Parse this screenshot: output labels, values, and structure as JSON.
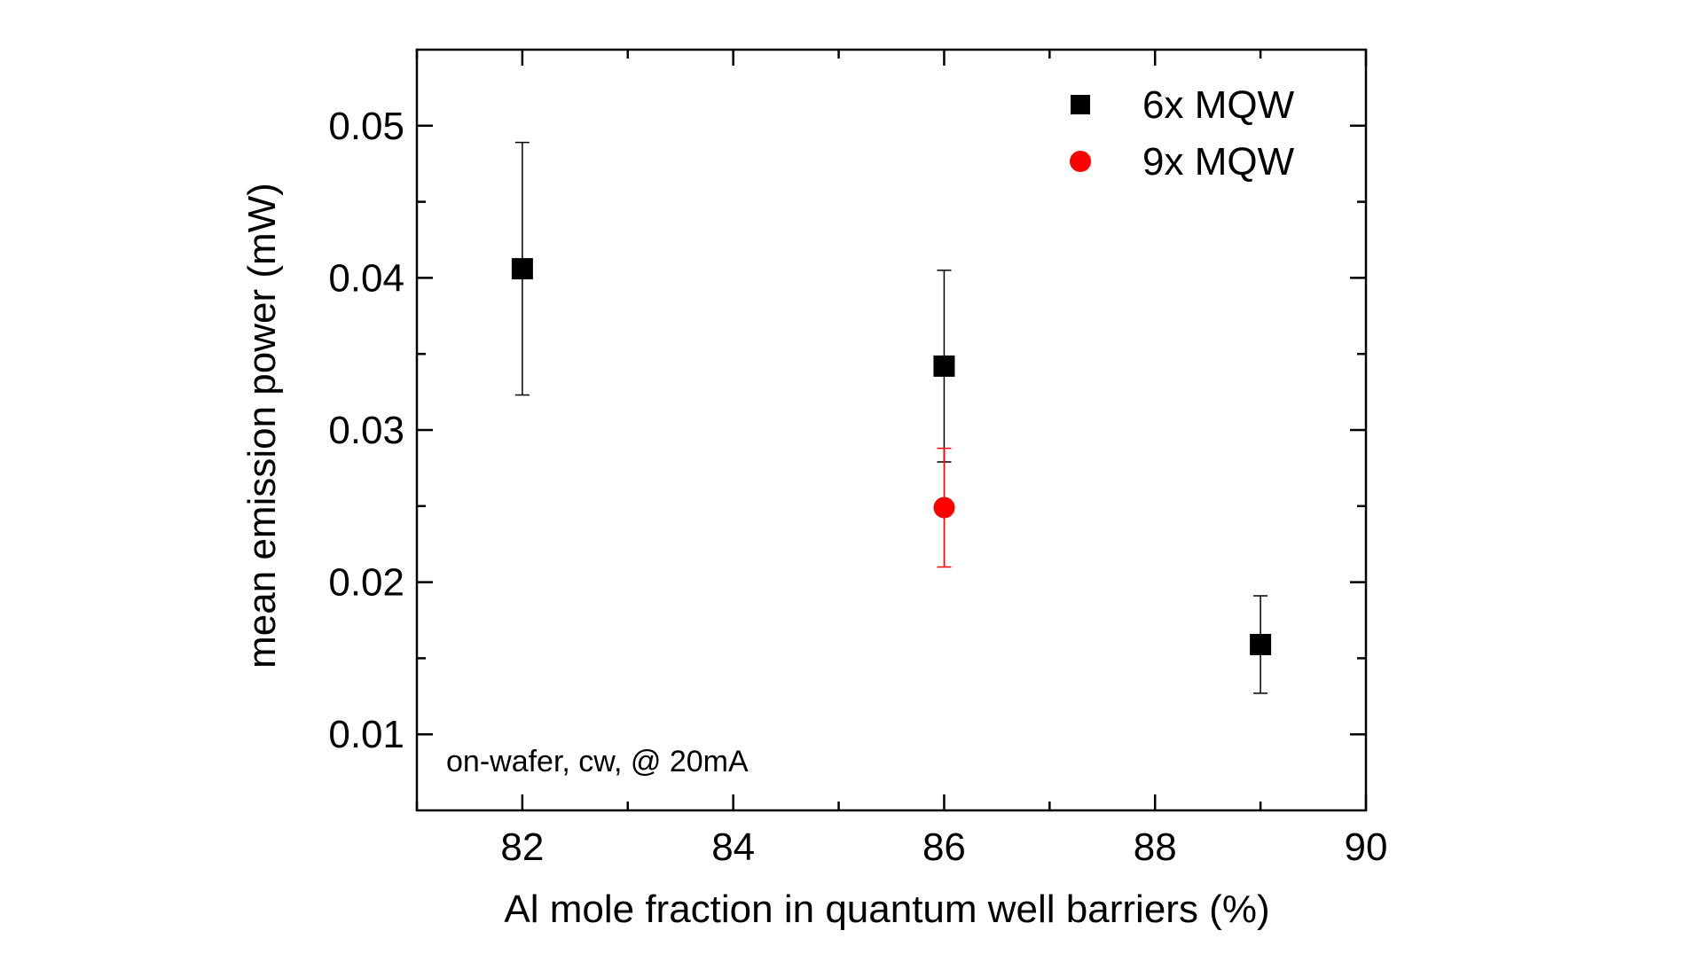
{
  "chart_data": {
    "type": "scatter",
    "title": "",
    "xlabel": "Al mole fraction in quantum well barriers (%)",
    "ylabel": "mean emission power (mW)",
    "xlim": [
      81,
      90
    ],
    "ylim": [
      0.005,
      0.055
    ],
    "x_ticks": [
      82,
      84,
      86,
      88,
      90
    ],
    "x_tick_labels": [
      "82",
      "84",
      "86",
      "88",
      "90"
    ],
    "x_minor_ticks": [
      81,
      83,
      85,
      87,
      89
    ],
    "y_ticks": [
      0.01,
      0.02,
      0.03,
      0.04,
      0.05
    ],
    "y_tick_labels": [
      "0.01",
      "0.02",
      "0.03",
      "0.04",
      "0.05"
    ],
    "y_minor_ticks": [
      0.015,
      0.025,
      0.035,
      0.045
    ],
    "grid": false,
    "legend_position": "top-right",
    "annotation": "on-wafer, cw, @ 20mA",
    "series": [
      {
        "name": "6x MQW",
        "marker": "square",
        "color": "#000000",
        "points": [
          {
            "x": 82,
            "y": 0.0406,
            "err_low": 0.0323,
            "err_high": 0.0489
          },
          {
            "x": 86,
            "y": 0.0342,
            "err_low": 0.0279,
            "err_high": 0.0405
          },
          {
            "x": 89,
            "y": 0.0159,
            "err_low": 0.0127,
            "err_high": 0.0191
          }
        ]
      },
      {
        "name": "9x MQW",
        "marker": "circle",
        "color": "#ff0000",
        "points": [
          {
            "x": 86,
            "y": 0.0249,
            "err_low": 0.021,
            "err_high": 0.0288
          }
        ]
      }
    ]
  }
}
